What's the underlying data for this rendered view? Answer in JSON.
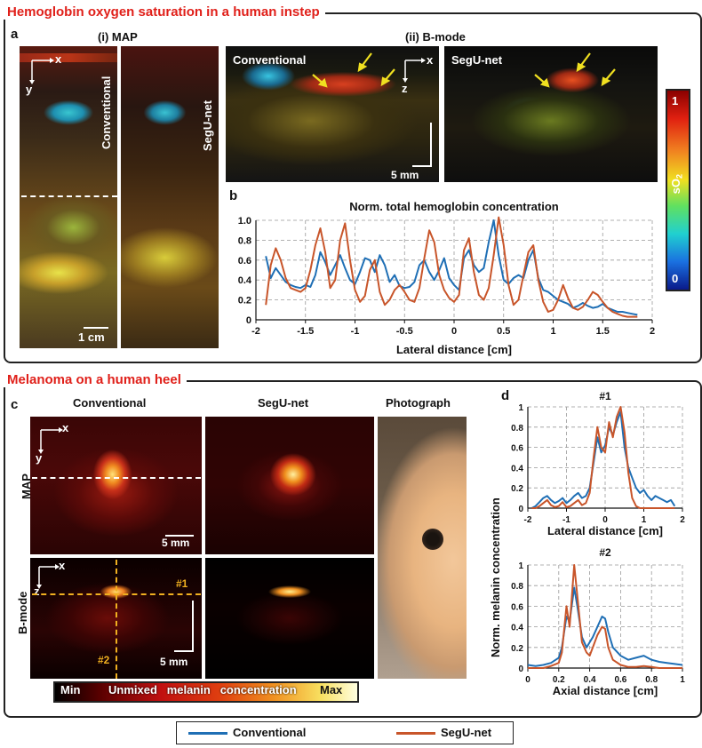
{
  "section_a_title": "Hemoglobin oxygen saturation in a human instep",
  "section_c_title": "Melanoma on a human heel",
  "panel_a": {
    "letter": "a",
    "map_label": "(i) MAP",
    "bmode_label": "(ii) B-mode",
    "conventional": "Conventional",
    "segunet": "SegU-net",
    "axis_x": "x",
    "axis_y": "y",
    "axis_z": "z",
    "scale_1cm": "1 cm",
    "scale_5mm": "5 mm"
  },
  "colorbar_so2": {
    "label": "sO",
    "sub": "2",
    "min": "0",
    "max": "1"
  },
  "panel_b": {
    "letter": "b",
    "chart_data": {
      "type": "line",
      "title": "Norm. total hemoglobin concentration",
      "xlabel": "Lateral distance [cm]",
      "ylabel": "",
      "xlim": [
        -2,
        2
      ],
      "ylim": [
        0,
        1.0
      ],
      "xticks": [
        "-2",
        "-1.5",
        "-1",
        "-0.5",
        "0",
        "0.5",
        "1",
        "1.5",
        "2"
      ],
      "yticks": [
        "0",
        "0.2",
        "0.4",
        "0.6",
        "0.8",
        "1.0"
      ],
      "grid": true,
      "series": [
        {
          "name": "Conventional",
          "color": "#1f6fb5",
          "x": [
            -1.9,
            -1.85,
            -1.8,
            -1.75,
            -1.7,
            -1.65,
            -1.6,
            -1.55,
            -1.5,
            -1.45,
            -1.4,
            -1.35,
            -1.3,
            -1.25,
            -1.2,
            -1.15,
            -1.1,
            -1.05,
            -1.0,
            -0.95,
            -0.9,
            -0.85,
            -0.8,
            -0.75,
            -0.7,
            -0.65,
            -0.6,
            -0.55,
            -0.5,
            -0.45,
            -0.4,
            -0.35,
            -0.3,
            -0.25,
            -0.2,
            -0.15,
            -0.1,
            -0.05,
            0.0,
            0.05,
            0.1,
            0.15,
            0.2,
            0.25,
            0.3,
            0.35,
            0.4,
            0.45,
            0.5,
            0.55,
            0.6,
            0.65,
            0.7,
            0.75,
            0.8,
            0.85,
            0.9,
            0.95,
            1.0,
            1.05,
            1.1,
            1.15,
            1.2,
            1.25,
            1.3,
            1.35,
            1.4,
            1.45,
            1.5,
            1.55,
            1.6,
            1.65,
            1.7,
            1.75,
            1.8,
            1.85
          ],
          "y": [
            0.64,
            0.42,
            0.52,
            0.45,
            0.38,
            0.35,
            0.33,
            0.32,
            0.35,
            0.33,
            0.45,
            0.68,
            0.58,
            0.45,
            0.55,
            0.65,
            0.52,
            0.4,
            0.36,
            0.48,
            0.62,
            0.6,
            0.48,
            0.65,
            0.55,
            0.38,
            0.45,
            0.34,
            0.32,
            0.33,
            0.38,
            0.55,
            0.6,
            0.48,
            0.4,
            0.5,
            0.62,
            0.42,
            0.35,
            0.3,
            0.62,
            0.7,
            0.55,
            0.48,
            0.52,
            0.78,
            1.0,
            0.65,
            0.4,
            0.36,
            0.42,
            0.45,
            0.42,
            0.6,
            0.7,
            0.42,
            0.3,
            0.28,
            0.24,
            0.2,
            0.18,
            0.16,
            0.12,
            0.14,
            0.17,
            0.14,
            0.12,
            0.13,
            0.16,
            0.12,
            0.1,
            0.08,
            0.08,
            0.07,
            0.06,
            0.05
          ]
        },
        {
          "name": "SegU-net",
          "color": "#c8552a",
          "x": [
            -1.9,
            -1.85,
            -1.8,
            -1.75,
            -1.7,
            -1.65,
            -1.6,
            -1.55,
            -1.5,
            -1.45,
            -1.4,
            -1.35,
            -1.3,
            -1.25,
            -1.2,
            -1.15,
            -1.1,
            -1.05,
            -1.0,
            -0.95,
            -0.9,
            -0.85,
            -0.8,
            -0.75,
            -0.7,
            -0.65,
            -0.6,
            -0.55,
            -0.5,
            -0.45,
            -0.4,
            -0.35,
            -0.3,
            -0.25,
            -0.2,
            -0.15,
            -0.1,
            -0.05,
            0.0,
            0.05,
            0.1,
            0.15,
            0.2,
            0.25,
            0.3,
            0.35,
            0.4,
            0.45,
            0.5,
            0.55,
            0.6,
            0.65,
            0.7,
            0.75,
            0.8,
            0.85,
            0.9,
            0.95,
            1.0,
            1.05,
            1.1,
            1.15,
            1.2,
            1.25,
            1.3,
            1.35,
            1.4,
            1.45,
            1.5,
            1.55,
            1.6,
            1.65,
            1.7,
            1.75,
            1.8,
            1.85
          ],
          "y": [
            0.15,
            0.55,
            0.72,
            0.6,
            0.42,
            0.32,
            0.3,
            0.28,
            0.32,
            0.5,
            0.75,
            0.92,
            0.68,
            0.32,
            0.4,
            0.8,
            0.97,
            0.6,
            0.3,
            0.18,
            0.24,
            0.5,
            0.6,
            0.28,
            0.15,
            0.2,
            0.3,
            0.35,
            0.28,
            0.2,
            0.18,
            0.32,
            0.62,
            0.9,
            0.78,
            0.45,
            0.3,
            0.22,
            0.18,
            0.25,
            0.7,
            0.82,
            0.48,
            0.25,
            0.2,
            0.32,
            0.65,
            1.03,
            0.75,
            0.35,
            0.15,
            0.2,
            0.45,
            0.68,
            0.75,
            0.4,
            0.18,
            0.08,
            0.1,
            0.2,
            0.35,
            0.22,
            0.12,
            0.1,
            0.13,
            0.2,
            0.28,
            0.25,
            0.18,
            0.12,
            0.08,
            0.06,
            0.04,
            0.03,
            0.03,
            0.03
          ]
        }
      ]
    }
  },
  "panel_c": {
    "letter": "c",
    "conventional": "Conventional",
    "segunet": "SegU-net",
    "photograph": "Photograph",
    "map_label": "MAP",
    "bmode_label": "B-mode",
    "axis_x": "x",
    "axis_y": "y",
    "axis_z": "z",
    "scale_5mm": "5 mm",
    "marker1": "#1",
    "marker2": "#2"
  },
  "colorbar_melanin": {
    "min": "Min",
    "text": "Unmixed   melanin   concentration",
    "max": "Max"
  },
  "panel_d": {
    "letter": "d",
    "ylabel": "Norm. melanin concentration",
    "chart_data": [
      {
        "type": "line",
        "title": "#1",
        "xlabel": "Lateral distance [cm]",
        "xlim": [
          -2,
          2
        ],
        "ylim": [
          0,
          1
        ],
        "xticks": [
          "-2",
          "-1",
          "0",
          "1",
          "2"
        ],
        "yticks": [
          "0",
          "0.2",
          "0.4",
          "0.6",
          "0.8",
          "1"
        ],
        "grid": true,
        "series": [
          {
            "name": "Conventional",
            "color": "#1f6fb5",
            "x": [
              -1.9,
              -1.8,
              -1.7,
              -1.6,
              -1.5,
              -1.4,
              -1.3,
              -1.2,
              -1.1,
              -1.0,
              -0.9,
              -0.8,
              -0.7,
              -0.6,
              -0.5,
              -0.4,
              -0.3,
              -0.2,
              -0.1,
              0.0,
              0.1,
              0.2,
              0.3,
              0.4,
              0.5,
              0.6,
              0.7,
              0.8,
              0.9,
              1.0,
              1.1,
              1.2,
              1.3,
              1.4,
              1.5,
              1.6,
              1.7,
              1.8
            ],
            "y": [
              0.0,
              0.02,
              0.06,
              0.1,
              0.12,
              0.08,
              0.05,
              0.07,
              0.1,
              0.05,
              0.08,
              0.12,
              0.15,
              0.1,
              0.12,
              0.2,
              0.45,
              0.7,
              0.55,
              0.62,
              0.8,
              0.72,
              0.85,
              0.95,
              0.6,
              0.4,
              0.3,
              0.2,
              0.15,
              0.18,
              0.12,
              0.08,
              0.12,
              0.1,
              0.08,
              0.06,
              0.08,
              0.02
            ]
          },
          {
            "name": "SegU-net",
            "color": "#c8552a",
            "x": [
              -1.9,
              -1.8,
              -1.7,
              -1.6,
              -1.5,
              -1.4,
              -1.3,
              -1.2,
              -1.1,
              -1.0,
              -0.9,
              -0.8,
              -0.7,
              -0.6,
              -0.5,
              -0.4,
              -0.3,
              -0.2,
              -0.1,
              0.0,
              0.1,
              0.2,
              0.3,
              0.4,
              0.5,
              0.6,
              0.7,
              0.8,
              0.9,
              1.0,
              1.1,
              1.2,
              1.3,
              1.4,
              1.5,
              1.6,
              1.7,
              1.8
            ],
            "y": [
              0.0,
              0.0,
              0.02,
              0.05,
              0.08,
              0.03,
              0.01,
              0.02,
              0.06,
              0.01,
              0.02,
              0.05,
              0.08,
              0.03,
              0.05,
              0.15,
              0.5,
              0.8,
              0.6,
              0.55,
              0.85,
              0.7,
              0.9,
              1.0,
              0.75,
              0.35,
              0.1,
              0.02,
              0.0,
              0.0,
              0.0,
              0.0,
              0.0,
              0.0,
              0.0,
              0.0,
              0.0,
              0.0
            ]
          }
        ]
      },
      {
        "type": "line",
        "title": "#2",
        "xlabel": "Axial distance [cm]",
        "xlim": [
          0,
          1
        ],
        "ylim": [
          0,
          1
        ],
        "xticks": [
          "0",
          "0.2",
          "0.4",
          "0.6",
          "0.8",
          "1"
        ],
        "yticks": [
          "0",
          "0.2",
          "0.4",
          "0.6",
          "0.8",
          "1"
        ],
        "grid": true,
        "series": [
          {
            "name": "Conventional",
            "color": "#1f6fb5",
            "x": [
              0.0,
              0.05,
              0.1,
              0.15,
              0.2,
              0.22,
              0.25,
              0.27,
              0.3,
              0.32,
              0.35,
              0.38,
              0.4,
              0.42,
              0.45,
              0.48,
              0.5,
              0.52,
              0.55,
              0.6,
              0.65,
              0.7,
              0.75,
              0.8,
              0.85,
              0.9,
              0.95,
              1.0
            ],
            "y": [
              0.03,
              0.02,
              0.03,
              0.05,
              0.1,
              0.2,
              0.5,
              0.45,
              0.78,
              0.6,
              0.3,
              0.2,
              0.25,
              0.3,
              0.4,
              0.5,
              0.48,
              0.35,
              0.2,
              0.12,
              0.08,
              0.1,
              0.12,
              0.08,
              0.06,
              0.05,
              0.04,
              0.03
            ]
          },
          {
            "name": "SegU-net",
            "color": "#c8552a",
            "x": [
              0.0,
              0.05,
              0.1,
              0.15,
              0.2,
              0.22,
              0.25,
              0.27,
              0.3,
              0.32,
              0.35,
              0.38,
              0.4,
              0.42,
              0.45,
              0.48,
              0.5,
              0.52,
              0.55,
              0.6,
              0.65,
              0.7,
              0.75,
              0.8,
              0.85,
              0.9,
              0.95,
              1.0
            ],
            "y": [
              0.0,
              0.0,
              0.0,
              0.02,
              0.05,
              0.15,
              0.6,
              0.4,
              1.0,
              0.7,
              0.25,
              0.15,
              0.12,
              0.2,
              0.32,
              0.4,
              0.38,
              0.2,
              0.08,
              0.03,
              0.01,
              0.01,
              0.02,
              0.01,
              0.0,
              0.0,
              0.0,
              0.0
            ]
          }
        ]
      }
    ]
  },
  "legend": {
    "conventional": "Conventional",
    "segunet": "SegU-net",
    "conventional_color": "#1f6fb5",
    "segunet_color": "#c8552a"
  }
}
